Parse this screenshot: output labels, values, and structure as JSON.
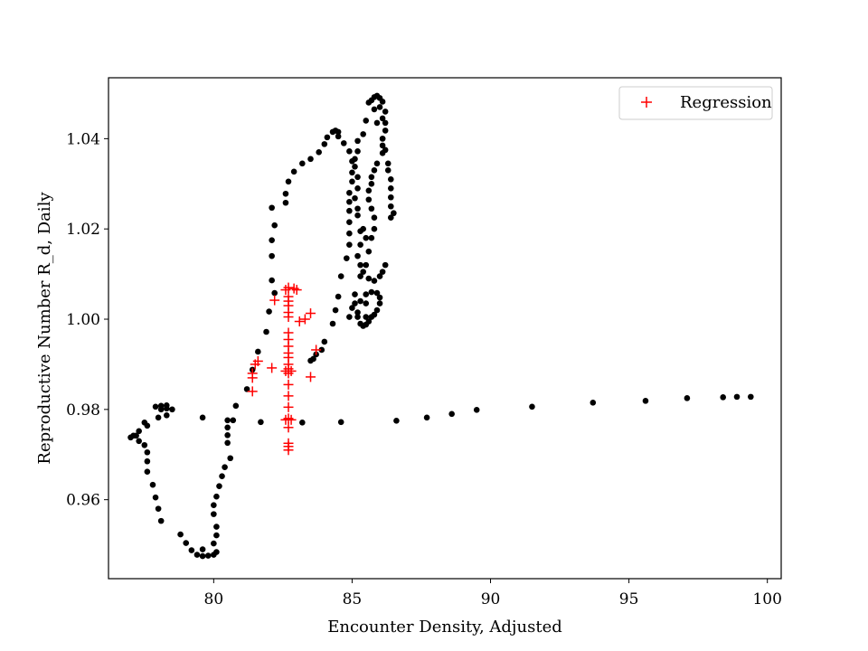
{
  "chart_data": {
    "type": "scatter",
    "title": "",
    "xlabel": "Encounter Density, Adjusted",
    "ylabel": "Reproductive Number R_d, Daily",
    "xlim": [
      76.2,
      100.5
    ],
    "ylim": [
      0.9425,
      1.0535
    ],
    "xticks": [
      80,
      85,
      90,
      95,
      100
    ],
    "xtick_labels": [
      "80",
      "85",
      "90",
      "95",
      "100"
    ],
    "yticks": [
      0.96,
      0.98,
      1.0,
      1.02,
      1.04
    ],
    "ytick_labels": [
      "0.96",
      "0.98",
      "1.00",
      "1.02",
      "1.04"
    ],
    "grid": false,
    "legend_position": "top-right",
    "series": [
      {
        "marker": "dot",
        "color": "#000000",
        "points": [
          [
            99.4,
            0.9828
          ],
          [
            98.9,
            0.9828
          ],
          [
            98.4,
            0.9827
          ],
          [
            97.1,
            0.9825
          ],
          [
            95.6,
            0.9819
          ],
          [
            93.7,
            0.9815
          ],
          [
            91.5,
            0.9806
          ],
          [
            89.5,
            0.9799
          ],
          [
            88.6,
            0.979
          ],
          [
            87.7,
            0.9782
          ],
          [
            86.6,
            0.9775
          ],
          [
            84.6,
            0.9772
          ],
          [
            83.2,
            0.9771
          ],
          [
            81.7,
            0.9772
          ],
          [
            80.7,
            0.9776
          ],
          [
            80.5,
            0.9776
          ],
          [
            80.5,
            0.976
          ],
          [
            80.5,
            0.9743
          ],
          [
            80.5,
            0.9726
          ],
          [
            80.6,
            0.9692
          ],
          [
            80.4,
            0.9672
          ],
          [
            80.3,
            0.9652
          ],
          [
            80.2,
            0.963
          ],
          [
            80.1,
            0.9607
          ],
          [
            80.0,
            0.9588
          ],
          [
            80.0,
            0.9568
          ],
          [
            80.1,
            0.954
          ],
          [
            80.1,
            0.9521
          ],
          [
            80.0,
            0.9503
          ],
          [
            80.1,
            0.9484
          ],
          [
            80.0,
            0.9478
          ],
          [
            79.8,
            0.9476
          ],
          [
            79.6,
            0.949
          ],
          [
            79.6,
            0.9475
          ],
          [
            79.4,
            0.9478
          ],
          [
            79.2,
            0.9488
          ],
          [
            79.0,
            0.9504
          ],
          [
            78.8,
            0.9523
          ],
          [
            78.1,
            0.9553
          ],
          [
            78.0,
            0.958
          ],
          [
            77.9,
            0.9605
          ],
          [
            77.8,
            0.9633
          ],
          [
            77.6,
            0.9662
          ],
          [
            77.6,
            0.9685
          ],
          [
            77.6,
            0.9705
          ],
          [
            77.5,
            0.9721
          ],
          [
            77.3,
            0.973
          ],
          [
            77.2,
            0.9742
          ],
          [
            77.0,
            0.9738
          ],
          [
            77.1,
            0.9742
          ],
          [
            77.3,
            0.9752
          ],
          [
            77.5,
            0.9771
          ],
          [
            77.6,
            0.9764
          ],
          [
            78.0,
            0.9782
          ],
          [
            78.1,
            0.98
          ],
          [
            78.3,
            0.9802
          ],
          [
            78.5,
            0.98
          ],
          [
            78.3,
            0.9809
          ],
          [
            78.1,
            0.9808
          ],
          [
            77.9,
            0.9806
          ],
          [
            78.3,
            0.9787
          ],
          [
            79.6,
            0.9782
          ],
          [
            80.8,
            0.9808
          ],
          [
            81.2,
            0.9845
          ],
          [
            81.4,
            0.9888
          ],
          [
            81.6,
            0.9928
          ],
          [
            81.9,
            0.9972
          ],
          [
            82.2,
            1.0058
          ],
          [
            82.0,
            1.0017
          ],
          [
            82.1,
            1.0086
          ],
          [
            82.1,
            1.014
          ],
          [
            82.1,
            1.0175
          ],
          [
            82.2,
            1.0208
          ],
          [
            82.1,
            1.0247
          ],
          [
            82.6,
            1.0258
          ],
          [
            82.6,
            1.0278
          ],
          [
            82.7,
            1.0305
          ],
          [
            82.9,
            1.0327
          ],
          [
            83.2,
            1.0345
          ],
          [
            83.5,
            1.0355
          ],
          [
            83.8,
            1.037
          ],
          [
            84.0,
            1.0388
          ],
          [
            84.1,
            1.0403
          ],
          [
            84.3,
            1.0415
          ],
          [
            84.4,
            1.0418
          ],
          [
            84.5,
            1.0415
          ],
          [
            84.5,
            1.0405
          ],
          [
            84.7,
            1.039
          ],
          [
            84.9,
            1.0372
          ],
          [
            85.0,
            1.035
          ],
          [
            85.0,
            1.0325
          ],
          [
            85.0,
            1.0305
          ],
          [
            84.9,
            1.028
          ],
          [
            84.9,
            1.026
          ],
          [
            84.9,
            1.024
          ],
          [
            84.9,
            1.0215
          ],
          [
            84.9,
            1.019
          ],
          [
            84.9,
            1.0165
          ],
          [
            84.8,
            1.0135
          ],
          [
            84.6,
            1.0095
          ],
          [
            84.5,
            1.005
          ],
          [
            84.4,
            1.002
          ],
          [
            84.3,
            0.999
          ],
          [
            84.0,
            0.995
          ],
          [
            83.9,
            0.9932
          ],
          [
            83.7,
            0.9922
          ],
          [
            83.6,
            0.9912
          ],
          [
            83.5,
            0.9908
          ],
          [
            85.2,
            1.0015
          ],
          [
            85.2,
            1.0005
          ],
          [
            85.3,
            0.999
          ],
          [
            85.4,
            0.9985
          ],
          [
            85.5,
            0.9988
          ],
          [
            85.6,
            0.9995
          ],
          [
            85.7,
            1.0005
          ],
          [
            85.8,
            1.001
          ],
          [
            85.9,
            1.002
          ],
          [
            86.0,
            1.0035
          ],
          [
            86.0,
            1.0048
          ],
          [
            85.9,
            1.0058
          ],
          [
            85.7,
            1.006
          ],
          [
            85.5,
            1.0055
          ],
          [
            85.5,
            1.0035
          ],
          [
            85.5,
            1.0005
          ],
          [
            85.3,
            1.004
          ],
          [
            85.1,
            1.0055
          ],
          [
            85.1,
            1.0035
          ],
          [
            85.0,
            1.0025
          ],
          [
            84.9,
            1.0005
          ],
          [
            85.3,
            1.0095
          ],
          [
            85.5,
            1.012
          ],
          [
            85.6,
            1.015
          ],
          [
            85.5,
            1.018
          ],
          [
            85.4,
            1.02
          ],
          [
            85.3,
            1.0195
          ],
          [
            85.3,
            1.0165
          ],
          [
            85.2,
            1.014
          ],
          [
            85.3,
            1.012
          ],
          [
            85.4,
            1.0105
          ],
          [
            85.6,
            1.009
          ],
          [
            85.8,
            1.0085
          ],
          [
            86.0,
            1.0095
          ],
          [
            86.1,
            1.0105
          ],
          [
            86.2,
            1.012
          ],
          [
            85.7,
            1.018
          ],
          [
            85.8,
            1.02
          ],
          [
            85.8,
            1.0225
          ],
          [
            85.7,
            1.0245
          ],
          [
            85.6,
            1.0265
          ],
          [
            85.6,
            1.0285
          ],
          [
            85.7,
            1.03
          ],
          [
            85.7,
            1.0315
          ],
          [
            85.8,
            1.033
          ],
          [
            85.9,
            1.0345
          ],
          [
            86.1,
            1.0368
          ],
          [
            86.1,
            1.0385
          ],
          [
            86.1,
            1.04
          ],
          [
            86.2,
            1.0418
          ],
          [
            86.2,
            1.0435
          ],
          [
            86.1,
            1.0445
          ],
          [
            86.2,
            1.046
          ],
          [
            86.1,
            1.0482
          ],
          [
            86.0,
            1.049
          ],
          [
            85.9,
            1.0495
          ],
          [
            85.8,
            1.0492
          ],
          [
            85.7,
            1.0485
          ],
          [
            85.6,
            1.048
          ],
          [
            85.5,
            1.044
          ],
          [
            85.4,
            1.041
          ],
          [
            85.2,
            1.0395
          ],
          [
            85.2,
            1.0372
          ],
          [
            85.1,
            1.0355
          ],
          [
            85.1,
            1.0338
          ],
          [
            85.2,
            1.0315
          ],
          [
            85.2,
            1.029
          ],
          [
            85.1,
            1.0268
          ],
          [
            85.2,
            1.0245
          ],
          [
            85.2,
            1.023
          ],
          [
            86.4,
            1.0225
          ],
          [
            86.5,
            1.0235
          ],
          [
            86.4,
            1.025
          ],
          [
            86.4,
            1.027
          ],
          [
            86.4,
            1.029
          ],
          [
            86.4,
            1.031
          ],
          [
            86.3,
            1.033
          ],
          [
            86.3,
            1.0345
          ],
          [
            86.2,
            1.0375
          ],
          [
            86.1,
            1.04
          ],
          [
            85.9,
            1.0435
          ],
          [
            85.8,
            1.0465
          ],
          [
            86.0,
            1.047
          ]
        ]
      },
      {
        "name": "Regression",
        "marker": "plus",
        "color": "#ff0000",
        "points": [
          [
            82.7,
            1.007
          ],
          [
            82.7,
            1.005
          ],
          [
            82.7,
            1.004
          ],
          [
            82.7,
            1.003
          ],
          [
            82.7,
            1.0015
          ],
          [
            82.7,
            1.0005
          ],
          [
            82.7,
            0.997
          ],
          [
            82.7,
            0.9955
          ],
          [
            82.7,
            0.994
          ],
          [
            82.7,
            0.9925
          ],
          [
            82.7,
            0.9915
          ],
          [
            82.7,
            0.99
          ],
          [
            82.7,
            0.989
          ],
          [
            82.7,
            0.988
          ],
          [
            82.7,
            0.9855
          ],
          [
            82.7,
            0.983
          ],
          [
            82.7,
            0.9805
          ],
          [
            82.7,
            0.978
          ],
          [
            82.7,
            0.976
          ],
          [
            82.7,
            0.9725
          ],
          [
            82.7,
            0.9718
          ],
          [
            82.7,
            0.971
          ],
          [
            82.6,
            0.9885
          ],
          [
            82.8,
            0.9885
          ],
          [
            82.6,
            0.9777
          ],
          [
            82.8,
            0.9777
          ],
          [
            82.6,
            1.0065
          ],
          [
            82.9,
            1.0068
          ],
          [
            83.0,
            1.0065
          ],
          [
            82.2,
            1.0042
          ],
          [
            83.1,
            0.9995
          ],
          [
            83.3,
            1.0
          ],
          [
            83.5,
            1.0013
          ],
          [
            83.7,
            0.9932
          ],
          [
            83.5,
            0.9872
          ],
          [
            82.1,
            0.9892
          ],
          [
            81.6,
            0.9907
          ],
          [
            81.5,
            0.99
          ],
          [
            81.4,
            0.988
          ],
          [
            81.4,
            0.987
          ],
          [
            81.4,
            0.984
          ]
        ]
      }
    ]
  }
}
